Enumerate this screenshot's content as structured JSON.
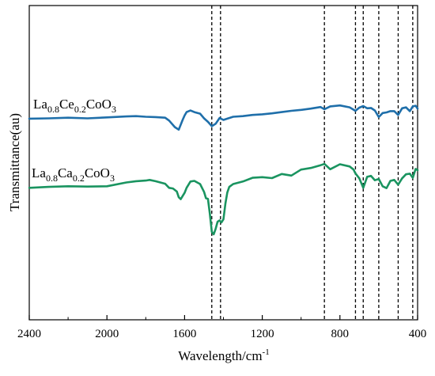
{
  "chart_data": {
    "type": "line",
    "title": "",
    "xlabel": "Wavelength/cm",
    "xlabel_superscript": "-1",
    "ylabel": "Transmittance(au)",
    "xlim": [
      2400,
      400
    ],
    "ylim": [
      0,
      1
    ],
    "x_reversed": true,
    "x_ticks": [
      2400,
      2000,
      1600,
      1200,
      800,
      400
    ],
    "x_tick_labels": [
      "2400",
      "2000",
      "1600",
      "1200",
      "800",
      "400"
    ],
    "grid": false,
    "legend": "none",
    "reference_lines_x": [
      1460,
      1415,
      880,
      720,
      680,
      600,
      500,
      425
    ],
    "series": [
      {
        "label_parts": [
          {
            "t": "La",
            "s": "n"
          },
          {
            "t": "0.8",
            "s": "sub"
          },
          {
            "t": "Ce",
            "s": "n"
          },
          {
            "t": "0.2",
            "s": "sub"
          },
          {
            "t": "CoO",
            "s": "n"
          },
          {
            "t": "3",
            "s": "sub"
          }
        ],
        "color": "#1f6faa",
        "x": [
          2400,
          2300,
          2200,
          2100,
          2000,
          1900,
          1850,
          1800,
          1750,
          1700,
          1680,
          1650,
          1630,
          1610,
          1600,
          1590,
          1570,
          1550,
          1520,
          1500,
          1480,
          1460,
          1440,
          1420,
          1400,
          1380,
          1350,
          1300,
          1250,
          1200,
          1150,
          1100,
          1050,
          1000,
          950,
          900,
          880,
          850,
          800,
          750,
          720,
          700,
          680,
          660,
          640,
          620,
          600,
          580,
          560,
          540,
          520,
          500,
          480,
          460,
          440,
          425,
          410,
          400
        ],
        "y": [
          0.64,
          0.641,
          0.643,
          0.641,
          0.644,
          0.647,
          0.648,
          0.646,
          0.645,
          0.643,
          0.634,
          0.613,
          0.605,
          0.636,
          0.65,
          0.661,
          0.666,
          0.661,
          0.656,
          0.641,
          0.63,
          0.616,
          0.624,
          0.642,
          0.636,
          0.64,
          0.646,
          0.648,
          0.652,
          0.654,
          0.657,
          0.661,
          0.665,
          0.668,
          0.672,
          0.677,
          0.67,
          0.679,
          0.682,
          0.676,
          0.665,
          0.675,
          0.68,
          0.673,
          0.674,
          0.666,
          0.645,
          0.658,
          0.66,
          0.664,
          0.664,
          0.652,
          0.673,
          0.676,
          0.664,
          0.679,
          0.681,
          0.672
        ]
      },
      {
        "label_parts": [
          {
            "t": "La",
            "s": "n"
          },
          {
            "t": "0.8",
            "s": "sub"
          },
          {
            "t": "Ca",
            "s": "n"
          },
          {
            "t": "0.2",
            "s": "sub"
          },
          {
            "t": "CoO",
            "s": "n"
          },
          {
            "t": "3",
            "s": "sub"
          }
        ],
        "color": "#1a9460",
        "x": [
          2400,
          2300,
          2200,
          2100,
          2000,
          1900,
          1850,
          1800,
          1780,
          1750,
          1700,
          1680,
          1660,
          1640,
          1630,
          1620,
          1600,
          1590,
          1570,
          1550,
          1520,
          1500,
          1490,
          1480,
          1470,
          1460,
          1450,
          1440,
          1430,
          1420,
          1410,
          1400,
          1390,
          1380,
          1370,
          1350,
          1300,
          1250,
          1200,
          1150,
          1100,
          1050,
          1000,
          950,
          900,
          880,
          850,
          800,
          750,
          730,
          720,
          700,
          680,
          660,
          640,
          620,
          600,
          580,
          560,
          540,
          520,
          500,
          480,
          460,
          440,
          425,
          410,
          400
        ],
        "y": [
          0.42,
          0.423,
          0.425,
          0.424,
          0.425,
          0.437,
          0.441,
          0.443,
          0.445,
          0.441,
          0.433,
          0.42,
          0.418,
          0.408,
          0.39,
          0.384,
          0.404,
          0.42,
          0.44,
          0.442,
          0.432,
          0.407,
          0.387,
          0.385,
          0.338,
          0.28,
          0.272,
          0.29,
          0.312,
          0.316,
          0.31,
          0.32,
          0.37,
          0.405,
          0.423,
          0.432,
          0.44,
          0.452,
          0.454,
          0.451,
          0.464,
          0.459,
          0.478,
          0.483,
          0.492,
          0.496,
          0.479,
          0.495,
          0.488,
          0.478,
          0.466,
          0.45,
          0.42,
          0.455,
          0.458,
          0.444,
          0.448,
          0.425,
          0.419,
          0.442,
          0.445,
          0.43,
          0.45,
          0.463,
          0.465,
          0.452,
          0.48,
          0.476
        ]
      }
    ]
  }
}
